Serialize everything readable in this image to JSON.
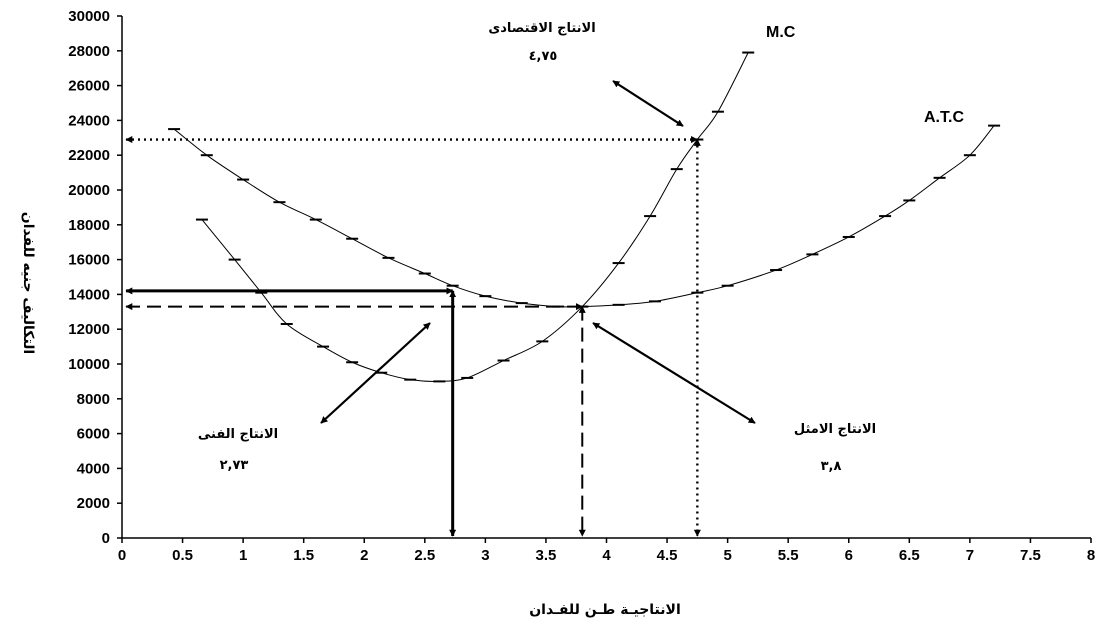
{
  "chart_data": {
    "type": "line",
    "xlabel": "الانتاجيـة طـن للفـدان",
    "ylabel": "التكاليف جنيه للفدان",
    "xlim": [
      0,
      8
    ],
    "ylim": [
      0,
      30000
    ],
    "x_ticks": [
      "0",
      "0.5",
      "1",
      "1.5",
      "2",
      "2.5",
      "3",
      "3.5",
      "4",
      "4.5",
      "5",
      "5.5",
      "6",
      "6.5",
      "7",
      "7.5",
      "8"
    ],
    "y_ticks": [
      "0",
      "2000",
      "4000",
      "6000",
      "8000",
      "10000",
      "12000",
      "14000",
      "16000",
      "18000",
      "20000",
      "22000",
      "24000",
      "26000",
      "28000",
      "30000"
    ],
    "grid": false,
    "series": [
      {
        "name": "M.C",
        "x": [
          0.66,
          0.93,
          1.15,
          1.36,
          1.66,
          1.9,
          2.14,
          2.38,
          2.62,
          2.85,
          3.15,
          3.47,
          3.8,
          4.1,
          4.36,
          4.58,
          4.75,
          4.92,
          5.17
        ],
        "y": [
          18300,
          16000,
          14100,
          12300,
          11000,
          10100,
          9500,
          9100,
          9000,
          9200,
          10200,
          11300,
          13300,
          15800,
          18500,
          21200,
          22900,
          24500,
          27900
        ]
      },
      {
        "name": "A.T.C",
        "x": [
          0.43,
          0.7,
          1.0,
          1.3,
          1.6,
          1.9,
          2.2,
          2.5,
          2.73,
          3.0,
          3.3,
          3.6,
          3.8,
          4.1,
          4.4,
          4.75,
          5.0,
          5.4,
          5.7,
          6.0,
          6.3,
          6.5,
          6.75,
          7.0,
          7.2
        ],
        "y": [
          23500,
          22000,
          20600,
          19300,
          18300,
          17200,
          16100,
          15200,
          14500,
          13900,
          13500,
          13300,
          13300,
          13400,
          13600,
          14100,
          14500,
          15400,
          16300,
          17300,
          18500,
          19400,
          20700,
          22000,
          23700
        ]
      }
    ],
    "annotations": {
      "economic": {
        "label": "الانتاج الاقتصادى",
        "value": "٤,٧٥",
        "x": 4.75,
        "y": 22900
      },
      "optimal": {
        "label": "الانتاج الامثل",
        "value": "٣,٨",
        "x": 3.8,
        "y": 13300
      },
      "technical": {
        "label": "الانتاج الفنى",
        "value": "٢,٧٣",
        "x": 2.73,
        "y": 14200
      }
    }
  }
}
